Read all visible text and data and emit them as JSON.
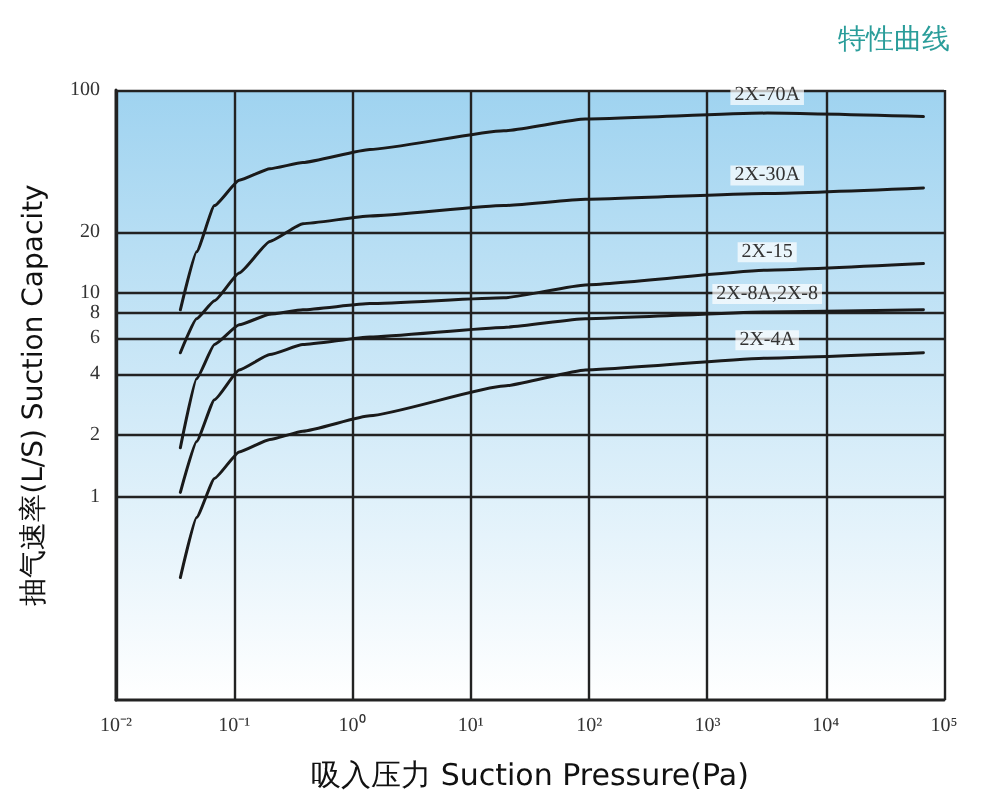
{
  "chart_data": {
    "type": "line",
    "title": "特性曲线",
    "xlabel": "吸入压力 Suction Pressure(Pa)",
    "ylabel": "抽气速率(L/S) Suction Capacity",
    "x": [
      0.035,
      0.048,
      0.068,
      0.11,
      0.2,
      0.38,
      1.4,
      19,
      93,
      3200,
      67000
    ],
    "series": [
      {
        "name": "2X-70A",
        "color": "#1a1a1a",
        "values": [
          8.3,
          16,
          27,
          36,
          41,
          44,
          51,
          63,
          72,
          77,
          74
        ]
      },
      {
        "name": "2X-30A",
        "color": "#1a1a1a",
        "values": [
          5.1,
          7.5,
          9.2,
          12.6,
          18,
          22,
          24,
          27,
          29,
          31,
          33
        ]
      },
      {
        "name": "2X-15",
        "color": "#1a1a1a",
        "values": [
          1.74,
          3.8,
          5.6,
          7.0,
          7.9,
          8.3,
          8.9,
          9.5,
          11,
          13,
          14
        ]
      },
      {
        "name": "2X-8A,2X-8",
        "color": "#1a1a1a",
        "values": [
          1.05,
          1.87,
          3.0,
          4.2,
          5.0,
          5.6,
          6.1,
          6.8,
          7.5,
          8.1,
          8.3
        ]
      },
      {
        "name": "2X-4A",
        "color": "#1a1a1a",
        "values": [
          0.4,
          0.79,
          1.23,
          1.66,
          1.91,
          2.1,
          2.5,
          3.5,
          4.2,
          4.8,
          5.1
        ]
      }
    ],
    "log": "xy",
    "xlim": [
      0.01,
      100000
    ],
    "ylim": [
      0.1,
      100
    ],
    "xticks": [
      {
        "value": 0.01,
        "label": "10⁻²"
      },
      {
        "value": 0.1,
        "label": "10⁻¹"
      },
      {
        "value": 1,
        "label": "10⁰"
      },
      {
        "value": 10,
        "label": "10¹"
      },
      {
        "value": 100,
        "label": "10²"
      },
      {
        "value": 1000,
        "label": "10³"
      },
      {
        "value": 10000,
        "label": "10⁴"
      },
      {
        "value": 100000,
        "label": "10⁵"
      }
    ],
    "yticks": [
      1,
      2,
      4,
      6,
      8,
      10,
      20,
      100
    ],
    "grid": true,
    "legend": false,
    "marker": "none",
    "line_style": "solid"
  }
}
